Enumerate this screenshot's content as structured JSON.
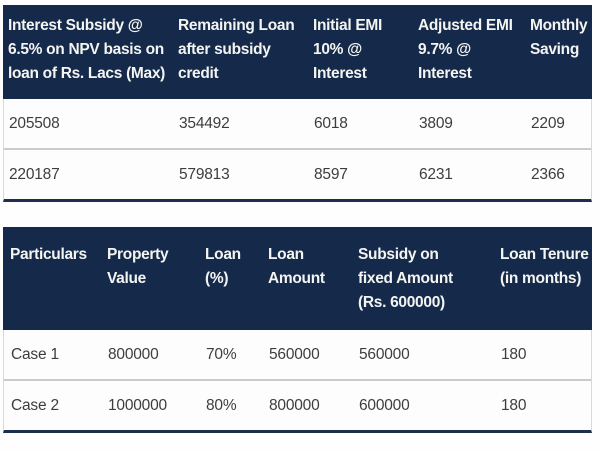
{
  "colors": {
    "header_bg": "#15294a",
    "header_text": "#f4f5f2",
    "body_text": "#3d3d3d",
    "row_divider": "#cbcbcb",
    "table_bottom_border": "#1d2f4e"
  },
  "emi_table": {
    "headers": [
      "Interest Subsidy @\n6.5% on NPV basis on\nloan of Rs. Lacs (Max)",
      "Remaining Loan\nafter subsidy\ncredit",
      "Initial EMI\n10% @\nInterest",
      "Adjusted EMI\n9.7% @\nInterest",
      "Monthly\nSaving"
    ],
    "rows": [
      [
        "205508",
        "354492",
        "6018",
        "3809",
        "2209"
      ],
      [
        "220187",
        "579813",
        "8597",
        "6231",
        "2366"
      ]
    ]
  },
  "cases_table": {
    "headers": [
      "Particulars",
      "Property\nValue",
      "Loan\n(%)",
      "Loan\nAmount",
      "Subsidy on\nfixed Amount\n(Rs. 600000)",
      "Loan Tenure\n(in months)"
    ],
    "rows": [
      [
        "Case 1",
        "800000",
        "70%",
        "560000",
        "560000",
        "180"
      ],
      [
        "Case 2",
        "1000000",
        "80%",
        "800000",
        "600000",
        "180"
      ]
    ]
  }
}
